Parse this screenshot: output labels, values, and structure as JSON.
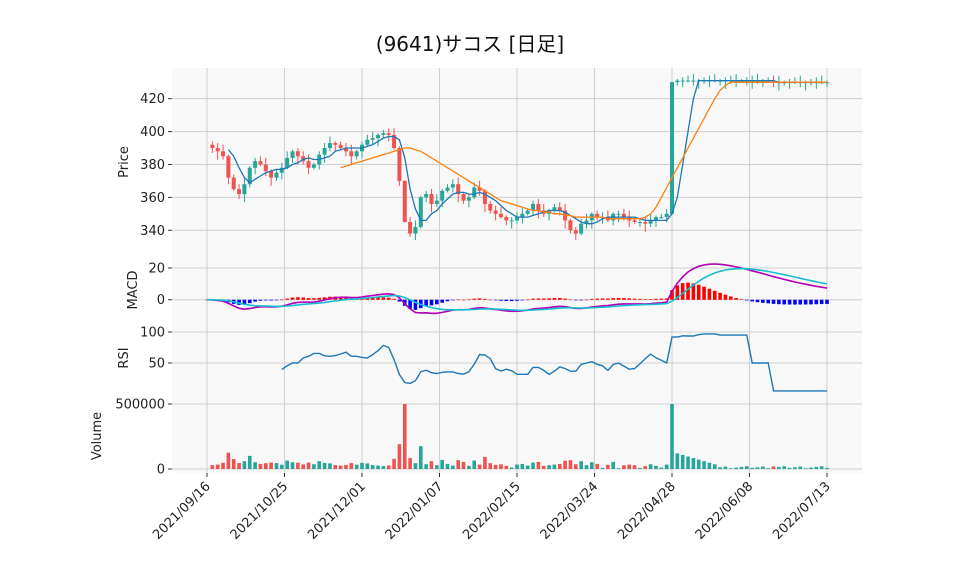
{
  "chart_data": {
    "type": "candlestick-multi-panel",
    "title": "(9641)サコス [日足]",
    "x_tick_labels": [
      "2021/09/16",
      "2021/10/25",
      "2021/12/01",
      "2022/01/07",
      "2022/02/15",
      "2022/03/24",
      "2022/04/28",
      "2022/06/08",
      "2022/07/13"
    ],
    "panels": {
      "price": {
        "ylabel": "Price",
        "ylim": [
          328,
          435
        ],
        "y_ticks": [
          340,
          360,
          380,
          400,
          420
        ],
        "close": [
          392,
          390,
          388,
          385,
          372,
          365,
          362,
          368,
          378,
          382,
          380,
          376,
          372,
          375,
          378,
          384,
          388,
          385,
          382,
          378,
          380,
          386,
          390,
          393,
          392,
          390,
          388,
          385,
          388,
          392,
          395,
          396,
          398,
          399,
          398,
          390,
          370,
          345,
          338,
          342,
          360,
          362,
          356,
          358,
          364,
          366,
          368,
          362,
          358,
          360,
          366,
          364,
          356,
          352,
          350,
          348,
          346,
          346,
          348,
          350,
          352,
          356,
          352,
          350,
          352,
          354,
          352,
          346,
          340,
          338,
          344,
          346,
          350,
          348,
          348,
          346,
          350,
          350,
          348,
          346,
          345,
          345,
          344,
          346,
          348,
          348,
          350,
          430,
          431,
          431,
          431,
          431,
          431,
          431,
          431,
          431,
          431,
          431,
          431,
          431,
          431,
          431,
          431,
          431,
          431,
          431,
          430,
          430,
          430,
          430,
          430,
          430,
          430,
          430,
          430,
          430,
          430
        ],
        "ma_short": [
          null,
          null,
          null,
          null,
          389,
          385,
          378,
          372,
          369,
          371,
          373,
          375,
          376,
          377,
          377,
          378,
          380,
          381,
          383,
          384,
          383,
          383,
          384,
          385,
          388,
          389,
          390,
          390,
          390,
          390,
          391,
          392,
          394,
          396,
          397,
          397,
          395,
          384,
          365,
          353,
          346,
          346,
          350,
          352,
          356,
          359,
          362,
          363,
          363,
          362,
          362,
          363,
          362,
          360,
          358,
          355,
          352,
          350,
          348,
          348,
          348,
          349,
          350,
          351,
          352,
          352,
          352,
          351,
          349,
          347,
          345,
          344,
          344,
          345,
          347,
          348,
          348,
          348,
          348,
          348,
          348,
          347,
          346,
          346,
          346,
          346,
          346,
          350,
          360,
          380,
          400,
          420,
          431,
          431,
          431,
          431,
          431,
          431,
          431,
          431,
          431,
          431,
          431,
          431,
          431,
          431,
          431,
          430,
          430,
          430,
          430,
          430,
          430,
          430,
          430,
          430,
          430
        ],
        "ma_long": [
          null,
          null,
          null,
          null,
          null,
          null,
          null,
          null,
          null,
          null,
          null,
          null,
          null,
          null,
          null,
          null,
          null,
          null,
          null,
          null,
          null,
          null,
          null,
          null,
          null,
          378,
          379,
          380,
          381,
          382,
          383,
          384,
          385,
          386,
          387,
          388,
          389,
          390,
          390,
          389,
          388,
          386,
          384,
          382,
          380,
          378,
          376,
          374,
          372,
          370,
          368,
          366,
          364,
          362,
          360,
          358,
          357,
          356,
          355,
          354,
          353,
          352,
          352,
          351,
          351,
          350,
          350,
          349,
          349,
          348,
          348,
          348,
          348,
          348,
          348,
          347,
          347,
          347,
          347,
          347,
          347,
          347,
          348,
          350,
          354,
          360,
          366,
          372,
          378,
          384,
          390,
          396,
          402,
          408,
          414,
          420,
          425,
          428,
          430,
          430,
          430,
          430,
          430,
          430,
          430,
          430,
          430,
          430,
          430,
          430,
          430,
          430,
          430,
          430,
          430,
          430,
          430
        ]
      },
      "macd": {
        "ylabel": "MACD",
        "ylim": [
          -14,
          25
        ],
        "y_ticks": [
          0,
          20
        ]
      },
      "rsi": {
        "ylabel": "RSI",
        "ylim": [
          0,
          100
        ],
        "y_ticks": [
          50,
          100
        ]
      },
      "volume": {
        "ylabel": "Volume",
        "ylim": [
          0,
          500000
        ],
        "y_ticks": [
          0,
          500000
        ],
        "y_tick_labels": [
          "0",
          "500000"
        ]
      }
    },
    "colors": {
      "up": "#26a69a",
      "down": "#ef5350",
      "close_line": "#1f77b4",
      "ma_long": "#ff7f0e",
      "macd_line": "#b000b8",
      "signal_line": "#17becf",
      "hist_pos": "#ff0000",
      "hist_neg": "#0000ff",
      "rsi_line": "#1f77b4",
      "panel_bg": "#f8f8f8",
      "grid": "#d0d0d0"
    },
    "grid": true
  }
}
